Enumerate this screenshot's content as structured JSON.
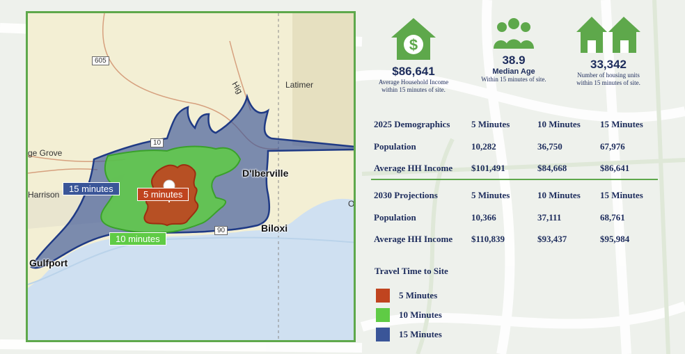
{
  "map": {
    "labels": {
      "road_605": "605",
      "latimer": "Latimer",
      "grove": "ge Grove",
      "harrison": "Harrison",
      "dIberville": "D'Iberville",
      "biloxi": "Biloxi",
      "gulfport": "Gulfport",
      "hwy": "Hig",
      "i10": "10",
      "route90": "90",
      "oc": "O"
    },
    "zones": {
      "min15": "15 minutes",
      "min10": "10 minutes",
      "min5": "5 minutes"
    }
  },
  "stats": [
    {
      "value": "$86,641",
      "caption1": "Average Household Income",
      "caption2": "within 15 minutes of site.",
      "icon": "house-dollar-icon"
    },
    {
      "value": "38.9",
      "sublabel": "Median Age",
      "caption1": "Within 15 minutes of site.",
      "icon": "people-group-icon"
    },
    {
      "value": "33,342",
      "caption1": "Number of housing units",
      "caption2": "within 15 minutes of site.",
      "icon": "houses-icon"
    }
  ],
  "table2025": {
    "header": [
      "2025 Demographics",
      "5 Minutes",
      "10 Minutes",
      "15 Minutes"
    ],
    "rows": [
      [
        "Population",
        "10,282",
        "36,750",
        "67,976"
      ],
      [
        "Average HH Income",
        "$101,491",
        "$84,668",
        "$86,641"
      ]
    ]
  },
  "table2030": {
    "header": [
      "2030 Projections",
      "5 Minutes",
      "10 Minutes",
      "15 Minutes"
    ],
    "rows": [
      [
        "Population",
        "10,366",
        "37,111",
        "68,761"
      ],
      [
        "Average HH Income",
        "$110,839",
        "$93,437",
        "$95,984"
      ]
    ]
  },
  "legend": {
    "title": "Travel Time to Site",
    "items": [
      {
        "label": "5 Minutes",
        "color": "#c0441f"
      },
      {
        "label": "10 Minutes",
        "color": "#5fcb45"
      },
      {
        "label": "15 Minutes",
        "color": "#3a5598"
      }
    ]
  },
  "colors": {
    "accent": "#5ea84b",
    "text": "#1d2c5c"
  }
}
